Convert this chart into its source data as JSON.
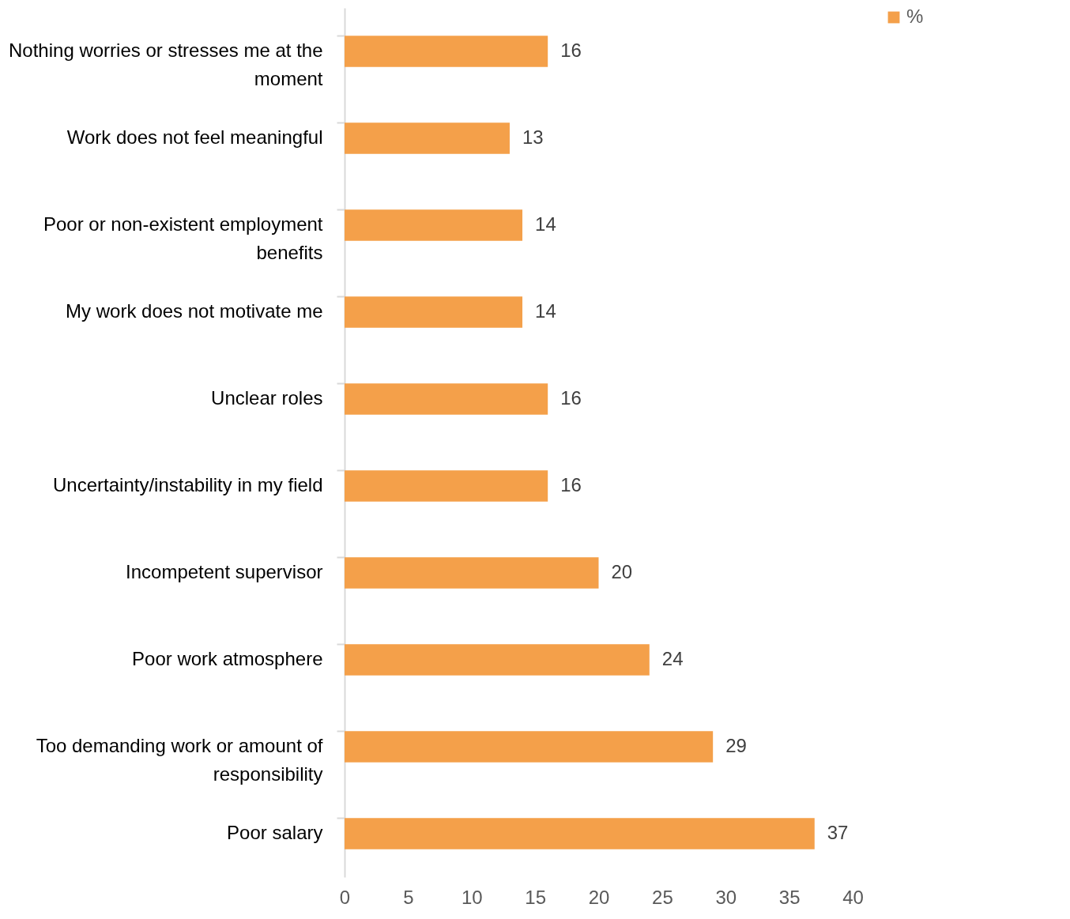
{
  "chart_data": {
    "type": "bar",
    "orientation": "horizontal",
    "categories": [
      "Nothing worries or stresses me at the moment",
      "Work does not feel meaningful",
      "Poor or non-existent employment benefits",
      "My work does not motivate me",
      "Unclear roles",
      "Uncertainty/instability in my field",
      "Incompetent supervisor",
      "Poor work atmosphere",
      "Too demanding work or amount of responsibility",
      "Poor salary"
    ],
    "series": [
      {
        "name": "%",
        "color": "#f4a04a",
        "values": [
          16,
          13,
          14,
          14,
          16,
          16,
          20,
          24,
          29,
          37
        ]
      }
    ],
    "xlim": [
      0,
      40
    ],
    "xticks": [
      0,
      5,
      10,
      15,
      20,
      25,
      30,
      35,
      40
    ],
    "data_labels": true,
    "legend": "right",
    "grid": false
  }
}
